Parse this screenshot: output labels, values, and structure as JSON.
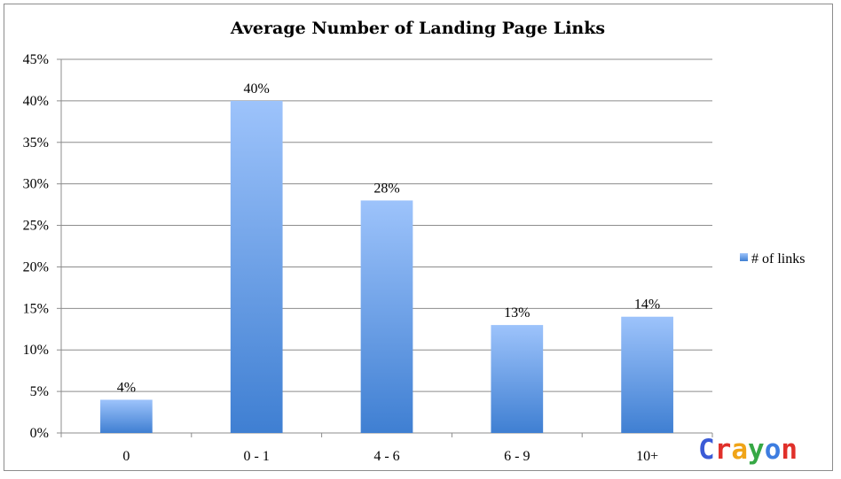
{
  "chart_data": {
    "type": "bar",
    "title": "Average Number of Landing Page Links",
    "categories": [
      "0",
      "0 - 1",
      "4 - 6",
      "6 - 9",
      "10+"
    ],
    "series": [
      {
        "name": "# of links",
        "values": [
          4,
          40,
          28,
          13,
          14
        ]
      }
    ],
    "data_labels": [
      "4%",
      "40%",
      "28%",
      "13%",
      "14%"
    ],
    "y_ticks": [
      "0%",
      "5%",
      "10%",
      "15%",
      "20%",
      "25%",
      "30%",
      "35%",
      "40%",
      "45%"
    ],
    "ylim": [
      0,
      45
    ],
    "y_step": 5,
    "grid": true,
    "legend_position": "right",
    "bar_color_top": "#9dc3fb",
    "bar_color_bottom": "#3f7fd2"
  },
  "watermark": {
    "text": "Crayon",
    "letter_colors": [
      "#3b5bd6",
      "#e0302a",
      "#f0a418",
      "#36a845",
      "#3d7de0",
      "#e0302a"
    ]
  }
}
